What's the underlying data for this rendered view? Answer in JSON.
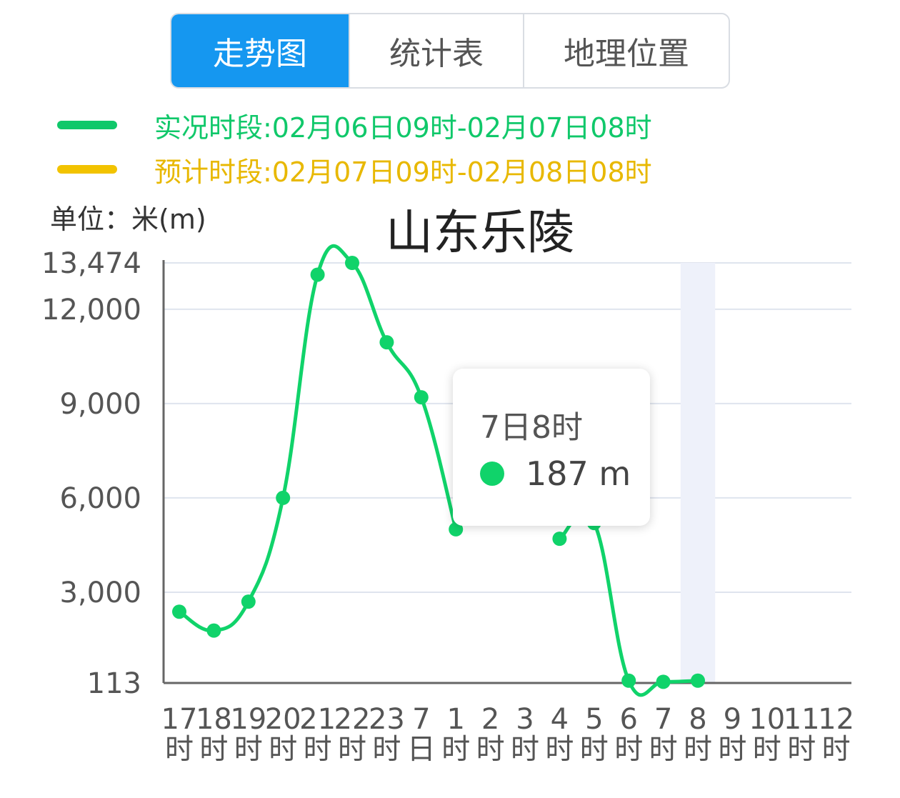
{
  "tabs": [
    {
      "label": "走势图",
      "active": true
    },
    {
      "label": "统计表",
      "active": false
    },
    {
      "label": "地理位置",
      "active": false
    }
  ],
  "legend": [
    {
      "text": "实况时段:02月06日09时-02月07日08时",
      "color": "#10c86a"
    },
    {
      "text": "预计时段:02月07日09时-02月08日08时",
      "color": "#f2c300"
    }
  ],
  "unit_label": "单位：米(m)",
  "tooltip": {
    "title": "7日8时",
    "value": "187 m"
  },
  "colors": {
    "accent": "#1597f0",
    "line": "#10d36a",
    "highlight": "#eef1fa"
  },
  "chart_data": {
    "type": "line",
    "title": "山东乐陵",
    "ylabel": "单位：米(m)",
    "ylim": [
      113,
      13474
    ],
    "yticks": [
      "113",
      "3,000",
      "6,000",
      "9,000",
      "12,000",
      "13,474"
    ],
    "categories": [
      [
        "17",
        "时"
      ],
      [
        "18",
        "时"
      ],
      [
        "19",
        "时"
      ],
      [
        "20",
        "时"
      ],
      [
        "21",
        "时"
      ],
      [
        "22",
        "时"
      ],
      [
        "23",
        "时"
      ],
      [
        "7",
        "日"
      ],
      [
        "1",
        "时"
      ],
      [
        "2",
        "时"
      ],
      [
        "3",
        "时"
      ],
      [
        "4",
        "时"
      ],
      [
        "5",
        "时"
      ],
      [
        "6",
        "时"
      ],
      [
        "7",
        "时"
      ],
      [
        "8",
        "时"
      ],
      [
        "9",
        "时"
      ],
      [
        "10",
        "时"
      ],
      [
        "11",
        "时"
      ],
      [
        "12",
        "时"
      ]
    ],
    "series": [
      {
        "values": [
          2380,
          1780,
          2700,
          6000,
          13100,
          13474,
          10950,
          9200,
          5000,
          null,
          null,
          4700,
          5200,
          187,
          150,
          187,
          null,
          null,
          null,
          null
        ]
      }
    ],
    "highlight_category": 15,
    "grid": true
  }
}
